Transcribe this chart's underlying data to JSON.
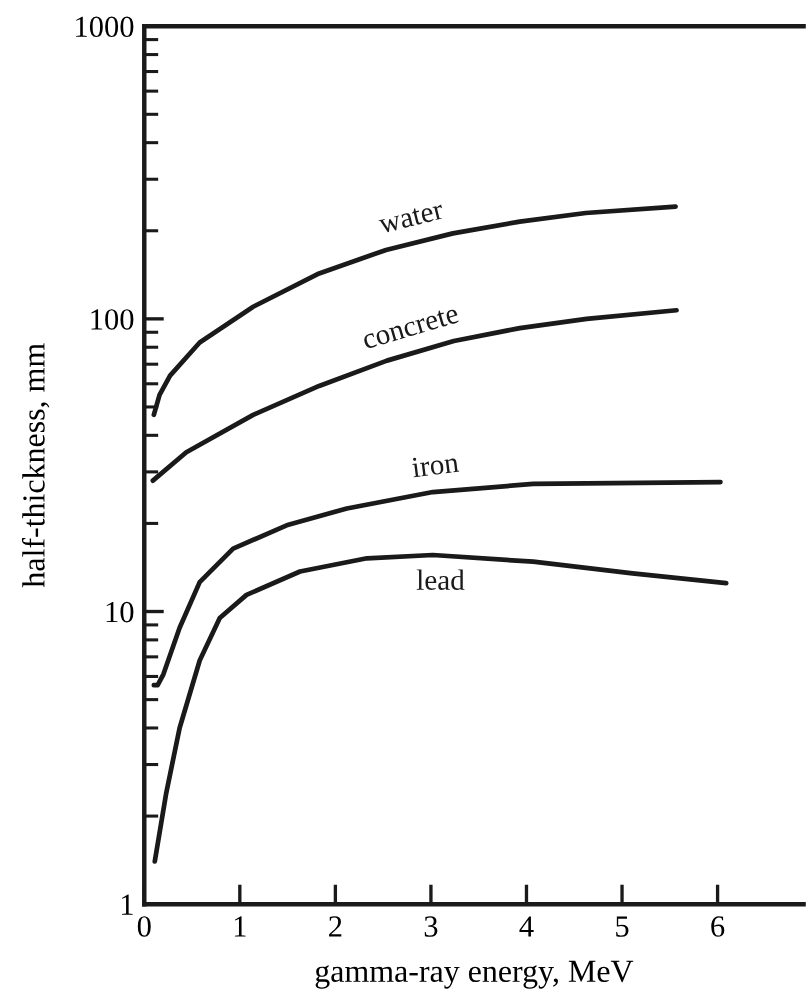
{
  "chart_data": {
    "type": "line",
    "xlabel": "gamma-ray energy, MeV",
    "ylabel": "half-thickness, mm",
    "log": "y",
    "xlim": [
      0,
      6.9
    ],
    "xticks": [
      0,
      1,
      2,
      3,
      4,
      5,
      6
    ],
    "ylim": [
      1,
      1000
    ],
    "yticks": [
      1,
      10,
      100,
      1000
    ],
    "grid": false,
    "legend": false,
    "marker": "none",
    "line_style": "solid",
    "series": [
      {
        "name": "water",
        "color": "#1a1a1a",
        "x": [
          0.1,
          0.16,
          0.27,
          0.58,
          1.14,
          1.83,
          2.53,
          3.23,
          3.93,
          4.62,
          5.56
        ],
        "values": [
          47,
          55,
          64,
          83,
          110,
          143,
          172,
          196,
          215,
          230,
          242
        ]
      },
      {
        "name": "concrete",
        "color": "#1a1a1a",
        "x": [
          0.09,
          0.44,
          1.14,
          1.83,
          2.54,
          3.24,
          3.93,
          4.63,
          5.57
        ],
        "values": [
          28,
          35,
          47,
          59,
          72,
          84,
          93,
          100,
          107
        ]
      },
      {
        "name": "iron",
        "color": "#1a1a1a",
        "x": [
          0.1,
          0.14,
          0.2,
          0.37,
          0.58,
          0.93,
          1.49,
          2.12,
          3.02,
          4.07,
          6.03
        ],
        "values": [
          5.6,
          5.6,
          6.1,
          8.8,
          12.6,
          16.4,
          19.7,
          22.5,
          25.6,
          27.3,
          27.7
        ]
      },
      {
        "name": "lead",
        "color": "#1a1a1a",
        "x": [
          0.11,
          0.23,
          0.37,
          0.58,
          0.79,
          1.07,
          1.63,
          2.33,
          3.02,
          4.07,
          5.11,
          6.09
        ],
        "values": [
          1.4,
          2.4,
          4.0,
          6.8,
          9.5,
          11.4,
          13.7,
          15.2,
          15.6,
          14.8,
          13.5,
          12.5
        ]
      }
    ]
  }
}
